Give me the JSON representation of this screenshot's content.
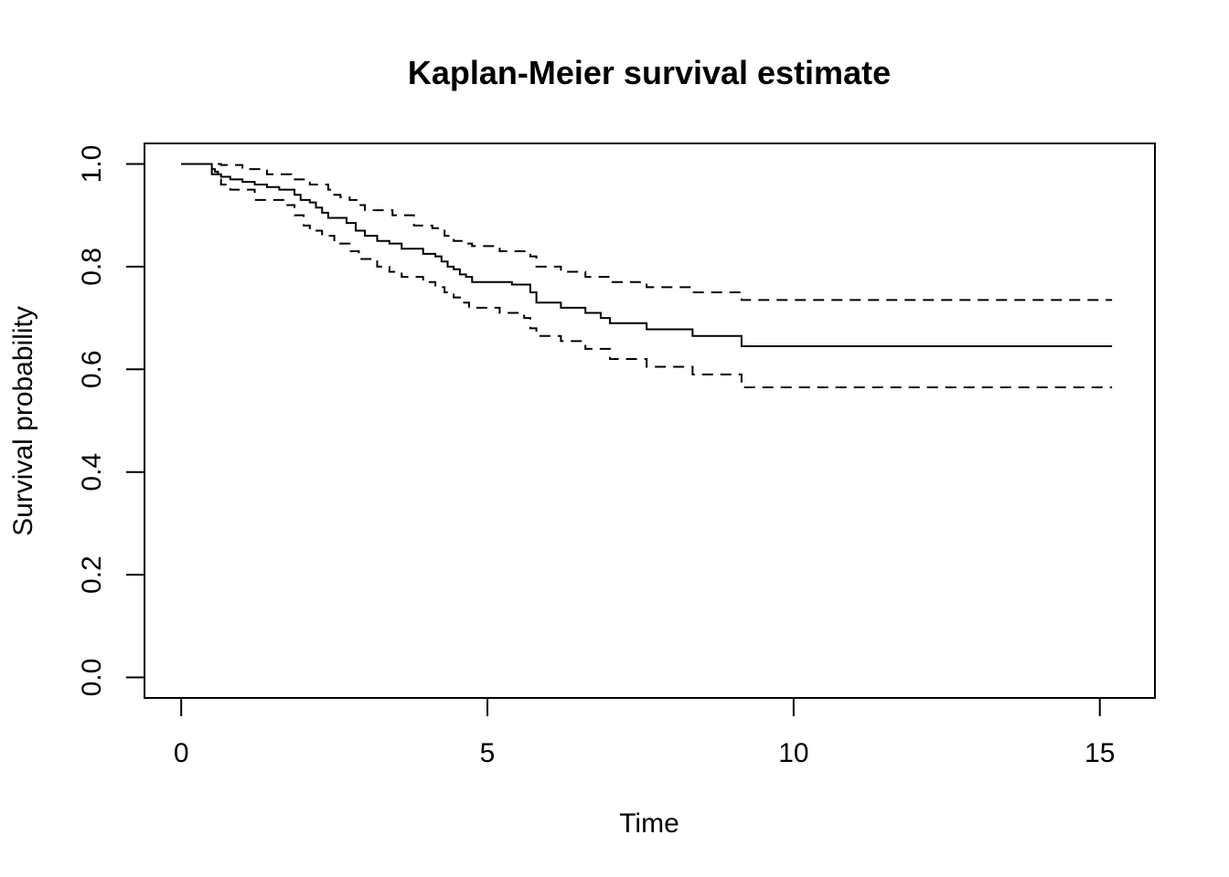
{
  "chart_data": {
    "type": "line",
    "title": "Kaplan-Meier survival estimate",
    "xlabel": "Time",
    "ylabel": "Survival probability",
    "xlim": [
      -0.6,
      15.9
    ],
    "ylim": [
      -0.04,
      1.04
    ],
    "x_ticks": [
      0,
      5,
      10,
      15
    ],
    "y_ticks": [
      0.0,
      0.2,
      0.4,
      0.6,
      0.8,
      1.0
    ],
    "x_tick_labels": [
      "0",
      "5",
      "10",
      "15"
    ],
    "y_tick_labels": [
      "0.0",
      "0.2",
      "0.4",
      "0.6",
      "0.8",
      "1.0"
    ],
    "grid": false,
    "legend": "none",
    "series": [
      {
        "style": "solid",
        "x": [
          0,
          0.5,
          0.55,
          0.6,
          0.65,
          0.8,
          1.0,
          1.2,
          1.4,
          1.6,
          1.85,
          1.95,
          2.1,
          2.2,
          2.3,
          2.4,
          2.7,
          2.85,
          3.0,
          3.2,
          3.4,
          3.6,
          3.95,
          4.15,
          4.25,
          4.35,
          4.45,
          4.55,
          4.65,
          4.75,
          5.4,
          5.7,
          5.8,
          6.2,
          6.6,
          6.85,
          7.0,
          7.6,
          8.35,
          9.15,
          15.2
        ],
        "y": [
          1.0,
          0.99,
          0.985,
          0.98,
          0.975,
          0.97,
          0.965,
          0.96,
          0.955,
          0.95,
          0.94,
          0.93,
          0.925,
          0.915,
          0.905,
          0.895,
          0.885,
          0.87,
          0.86,
          0.85,
          0.845,
          0.835,
          0.825,
          0.82,
          0.81,
          0.8,
          0.795,
          0.785,
          0.78,
          0.77,
          0.765,
          0.75,
          0.73,
          0.72,
          0.71,
          0.7,
          0.69,
          0.678,
          0.665,
          0.645,
          0.645
        ]
      },
      {
        "style": "dashed",
        "x": [
          0,
          0.55,
          0.65,
          1.0,
          1.4,
          1.8,
          2.1,
          2.4,
          2.5,
          2.6,
          2.75,
          2.9,
          3.0,
          3.45,
          3.8,
          4.1,
          4.3,
          4.45,
          4.6,
          4.75,
          5.2,
          5.7,
          5.8,
          6.2,
          6.6,
          7.0,
          7.6,
          8.35,
          9.15,
          15.2
        ],
        "y": [
          1.0,
          1.0,
          0.998,
          0.99,
          0.98,
          0.97,
          0.96,
          0.95,
          0.94,
          0.935,
          0.93,
          0.92,
          0.91,
          0.9,
          0.88,
          0.875,
          0.86,
          0.85,
          0.845,
          0.84,
          0.83,
          0.82,
          0.8,
          0.79,
          0.78,
          0.77,
          0.76,
          0.75,
          0.735,
          0.735
        ]
      },
      {
        "style": "dashed",
        "x": [
          0,
          0.5,
          0.6,
          0.65,
          0.8,
          1.2,
          1.7,
          1.85,
          2.0,
          2.1,
          2.3,
          2.5,
          2.75,
          2.9,
          3.2,
          3.4,
          3.6,
          3.95,
          4.15,
          4.3,
          4.45,
          4.6,
          4.7,
          5.2,
          5.6,
          5.7,
          5.8,
          6.2,
          6.6,
          7.0,
          7.6,
          8.35,
          9.15,
          15.2
        ],
        "y": [
          1.0,
          0.98,
          0.97,
          0.96,
          0.95,
          0.93,
          0.92,
          0.9,
          0.88,
          0.87,
          0.86,
          0.845,
          0.83,
          0.815,
          0.8,
          0.79,
          0.78,
          0.77,
          0.76,
          0.75,
          0.74,
          0.73,
          0.72,
          0.71,
          0.7,
          0.68,
          0.665,
          0.655,
          0.64,
          0.62,
          0.605,
          0.59,
          0.565,
          0.565
        ]
      }
    ]
  }
}
